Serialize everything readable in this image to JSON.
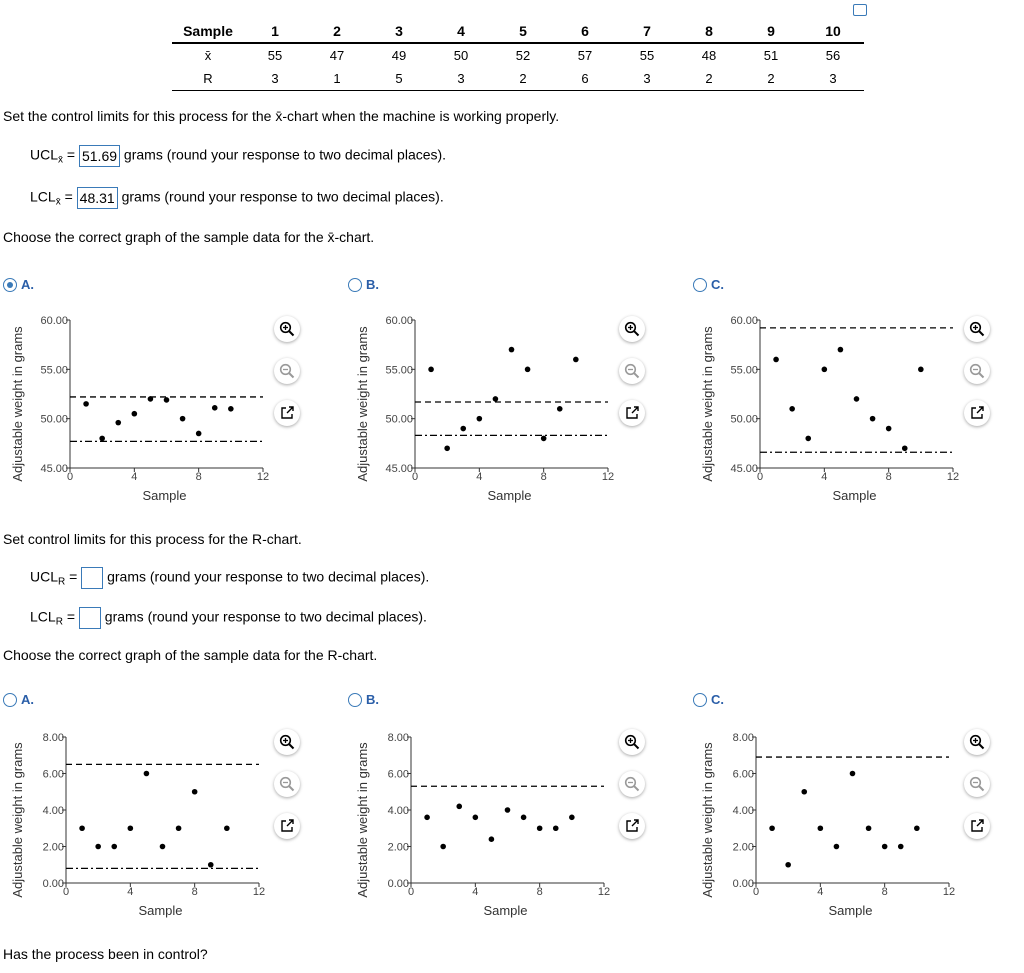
{
  "table": {
    "header_label": "Sample",
    "xbar_label": "x̄",
    "r_label": "R",
    "samples": [
      "1",
      "2",
      "3",
      "4",
      "5",
      "6",
      "7",
      "8",
      "9",
      "10"
    ],
    "xbar": [
      "55",
      "47",
      "49",
      "50",
      "52",
      "57",
      "55",
      "48",
      "51",
      "56"
    ],
    "r": [
      "3",
      "1",
      "5",
      "3",
      "2",
      "6",
      "3",
      "2",
      "2",
      "3"
    ]
  },
  "q1": {
    "prompt": "Set the control limits for this process for the x̄-chart when the machine is working properly.",
    "ucl_label": "UCL",
    "ucl_value": "51.69",
    "lcl_label": "LCL",
    "lcl_value": "48.31",
    "sub": "x̄",
    "eq": "=",
    "hint": "grams (round your response to two decimal places).",
    "graph_prompt": "Choose the correct graph of the sample data for the x̄-chart."
  },
  "q2": {
    "prompt": "Set control limits for this process for the R-chart.",
    "ucl_label": "UCL",
    "lcl_label": "LCL",
    "sub": "R",
    "eq": "=",
    "ucl_value": "",
    "lcl_value": "",
    "hint": "grams (round your response to two decimal places).",
    "graph_prompt": "Choose the correct graph of the sample data for the R-chart."
  },
  "footer": "Has the process been in control?",
  "colors": {
    "accent": "#3a7ab8",
    "option": "#2a5ea8"
  },
  "chart_data": [
    {
      "id": "xA",
      "option": "A.",
      "selected": true,
      "type": "scatter",
      "xlabel": "Sample",
      "ylabel": "Adjustable weight in grams",
      "xlim": [
        0,
        12
      ],
      "ylim": [
        45,
        60
      ],
      "xticks": [
        "0",
        "4",
        "8",
        "12"
      ],
      "yticks": [
        "45.00",
        "50.00",
        "55.00",
        "60.00"
      ],
      "x": [
        1,
        2,
        3,
        4,
        5,
        6,
        7,
        8,
        9,
        10
      ],
      "y": [
        51.5,
        48,
        49.6,
        50.5,
        52,
        51.9,
        50,
        48.5,
        51.1,
        51
      ],
      "ucl": 52.2,
      "lcl": 47.7
    },
    {
      "id": "xB",
      "option": "B.",
      "selected": false,
      "type": "scatter",
      "xlabel": "Sample",
      "ylabel": "Adjustable weight in grams",
      "xlim": [
        0,
        12
      ],
      "ylim": [
        45,
        60
      ],
      "xticks": [
        "0",
        "4",
        "8",
        "12"
      ],
      "yticks": [
        "45.00",
        "50.00",
        "55.00",
        "60.00"
      ],
      "x": [
        1,
        2,
        3,
        4,
        5,
        6,
        7,
        8,
        9,
        10
      ],
      "y": [
        55,
        47,
        49,
        50,
        52,
        57,
        55,
        48,
        51,
        56
      ],
      "ucl": 51.69,
      "lcl": 48.31
    },
    {
      "id": "xC",
      "option": "C.",
      "selected": false,
      "type": "scatter",
      "xlabel": "Sample",
      "ylabel": "Adjustable weight in grams",
      "xlim": [
        0,
        12
      ],
      "ylim": [
        45,
        60
      ],
      "xticks": [
        "0",
        "4",
        "8",
        "12"
      ],
      "yticks": [
        "45.00",
        "50.00",
        "55.00",
        "60.00"
      ],
      "x": [
        1,
        2,
        3,
        4,
        5,
        6,
        7,
        8,
        9,
        10
      ],
      "y": [
        56,
        51,
        48,
        55,
        57,
        52,
        50,
        49,
        47,
        55
      ],
      "ucl": 59.2,
      "lcl": 46.6
    },
    {
      "id": "rA",
      "option": "A.",
      "selected": false,
      "type": "scatter",
      "xlabel": "Sample",
      "ylabel": "Adjustable weight in grams",
      "xlim": [
        0,
        12
      ],
      "ylim": [
        0,
        8
      ],
      "xticks": [
        "0",
        "4",
        "8",
        "12"
      ],
      "yticks": [
        "0.00",
        "2.00",
        "4.00",
        "6.00",
        "8.00"
      ],
      "x": [
        1,
        2,
        3,
        4,
        5,
        6,
        7,
        8,
        9,
        10
      ],
      "y": [
        3,
        2,
        2,
        3,
        6,
        2,
        3,
        5,
        1,
        3
      ],
      "ucl": 6.5,
      "lcl": 0.8
    },
    {
      "id": "rB",
      "option": "B.",
      "selected": false,
      "type": "scatter",
      "xlabel": "Sample",
      "ylabel": "Adjustable weight in grams",
      "xlim": [
        0,
        12
      ],
      "ylim": [
        0,
        8
      ],
      "xticks": [
        "0",
        "4",
        "8",
        "12"
      ],
      "yticks": [
        "0.00",
        "2.00",
        "4.00",
        "6.00",
        "8.00"
      ],
      "x": [
        1,
        2,
        3,
        4,
        5,
        6,
        7,
        8,
        9,
        10
      ],
      "y": [
        3.6,
        2,
        4.2,
        3.6,
        2.4,
        4,
        3.6,
        3,
        3,
        3.6
      ],
      "ucl": 5.3,
      "lcl": null
    },
    {
      "id": "rC",
      "option": "C.",
      "selected": false,
      "type": "scatter",
      "xlabel": "Sample",
      "ylabel": "Adjustable weight in grams",
      "xlim": [
        0,
        12
      ],
      "ylim": [
        0,
        8
      ],
      "xticks": [
        "0",
        "4",
        "8",
        "12"
      ],
      "yticks": [
        "0.00",
        "2.00",
        "4.00",
        "6.00",
        "8.00"
      ],
      "x": [
        1,
        2,
        3,
        4,
        5,
        6,
        7,
        8,
        9,
        10
      ],
      "y": [
        3,
        1,
        5,
        3,
        2,
        6,
        3,
        2,
        2,
        3
      ],
      "ucl": 6.9,
      "lcl": null
    }
  ]
}
